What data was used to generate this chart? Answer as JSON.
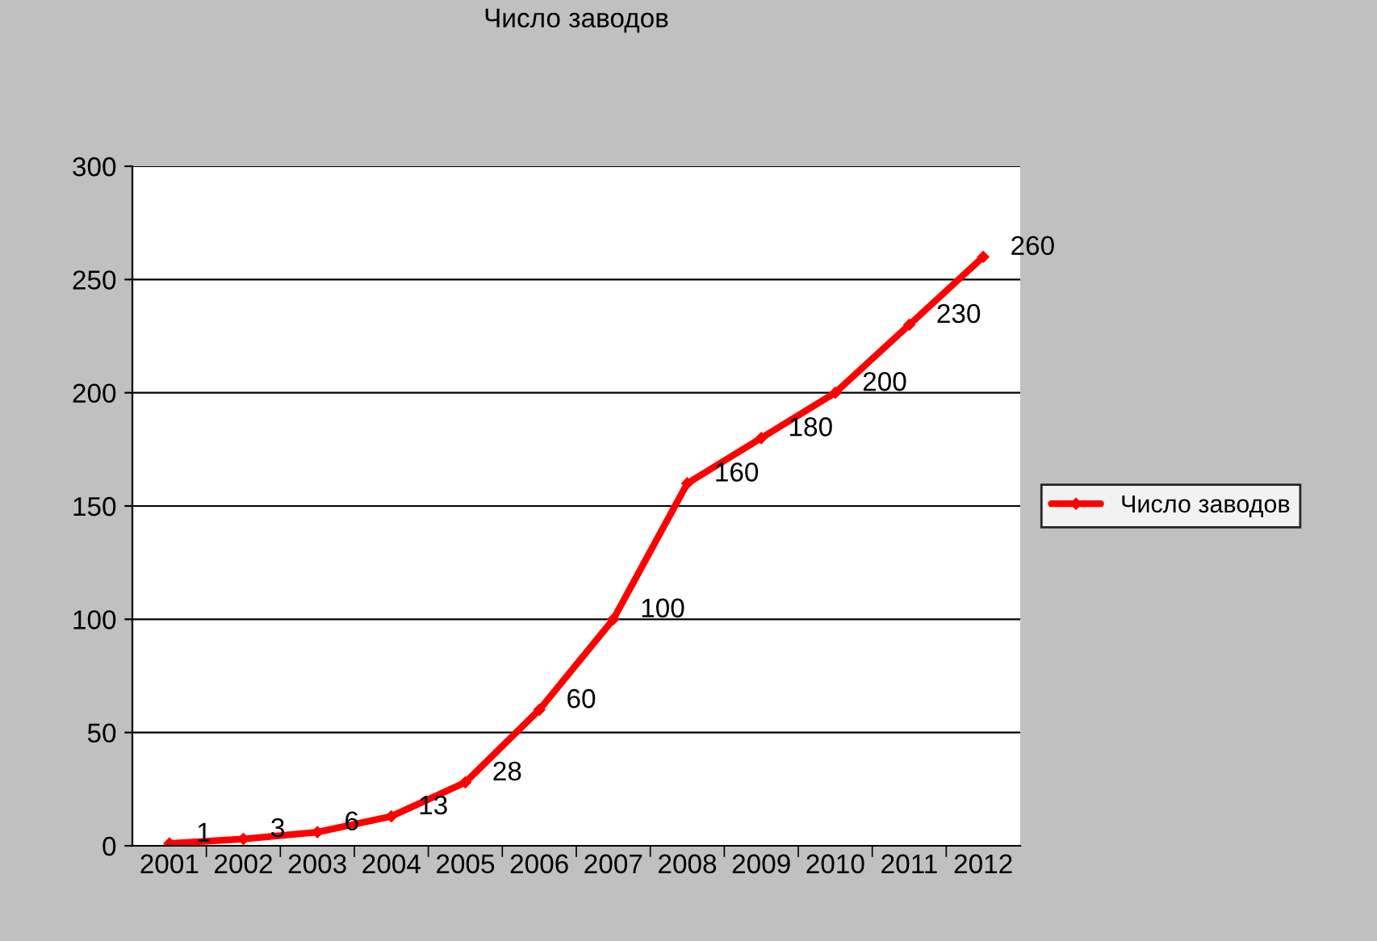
{
  "chart_data": {
    "type": "line",
    "title": "Число заводов",
    "categories": [
      "2001",
      "2002",
      "2003",
      "2004",
      "2005",
      "2006",
      "2007",
      "2008",
      "2009",
      "2010",
      "2011",
      "2012"
    ],
    "series": [
      {
        "name": "Число заводов",
        "color": "#ff0000",
        "values": [
          1,
          3,
          6,
          13,
          28,
          60,
          100,
          160,
          180,
          200,
          230,
          260
        ]
      }
    ],
    "ylim": [
      0,
      300
    ],
    "yticks": [
      0,
      50,
      100,
      150,
      200,
      250,
      300
    ],
    "grid": "y",
    "legend": "right",
    "marker": "diamond",
    "line_style": "solid",
    "data_labels": true
  }
}
